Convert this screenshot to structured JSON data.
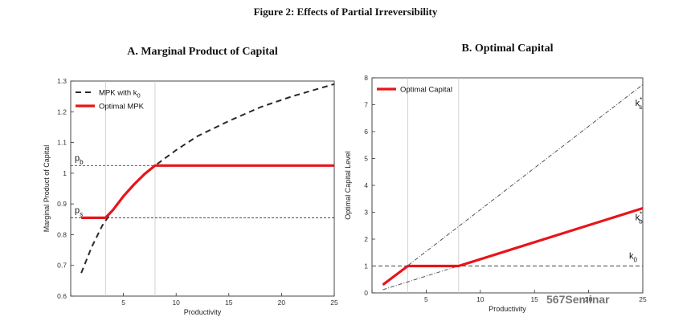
{
  "figure_title": "Figure 2: Effects of Partial Irreversibility",
  "watermark": "567Seminar",
  "colors": {
    "red": "#e8141a",
    "dark": "#2a2a2a",
    "grid": "#c8c8c8"
  },
  "chart_data": [
    {
      "type": "line",
      "title": "A. Marginal Product of Capital",
      "xlabel": "Productivity",
      "ylabel": "Marginal Product of Capital",
      "xlim": [
        0,
        25
      ],
      "ylim": [
        0.6,
        1.3
      ],
      "xticks": [
        0,
        5,
        10,
        15,
        20,
        25
      ],
      "yticks": [
        0.6,
        0.7,
        0.8,
        0.9,
        1.0,
        1.1,
        1.2,
        1.3
      ],
      "ytick_labels": [
        "0.6",
        "0.7",
        "0.8",
        "0.9",
        "1",
        "1.1",
        "1.2",
        "1.3"
      ],
      "vlines": [
        3.3,
        8
      ],
      "hlines": [
        {
          "y": 1.025,
          "label_main": "p",
          "label_sub": "b"
        },
        {
          "y": 0.855,
          "label_main": "p",
          "label_sub": "s"
        }
      ],
      "series": [
        {
          "name": "MPK with k0",
          "legend_main": "MPK with k",
          "legend_sub": "0",
          "style": "dashed",
          "x": [
            1,
            2,
            3,
            4,
            5,
            6,
            7,
            8,
            10,
            12,
            15,
            18,
            21,
            25
          ],
          "y": [
            0.675,
            0.76,
            0.83,
            0.88,
            0.925,
            0.963,
            0.997,
            1.025,
            1.075,
            1.12,
            1.17,
            1.215,
            1.25,
            1.29
          ]
        },
        {
          "name": "Optimal MPK",
          "legend_main": "Optimal MPK",
          "legend_sub": "",
          "style": "solid",
          "x": [
            1,
            3.3,
            4,
            5,
            6,
            7,
            8,
            25
          ],
          "y": [
            0.855,
            0.855,
            0.88,
            0.925,
            0.963,
            0.997,
            1.025,
            1.025
          ]
        }
      ]
    },
    {
      "type": "line",
      "title": "B. Optimal Capital",
      "xlabel": "Productivity",
      "ylabel": "Optimal Capital Level",
      "xlim": [
        0,
        25
      ],
      "ylim": [
        0,
        8
      ],
      "xticks": [
        0,
        5,
        10,
        15,
        20,
        25
      ],
      "yticks": [
        0,
        1,
        2,
        3,
        4,
        5,
        6,
        7,
        8
      ],
      "ytick_labels": [
        "0",
        "1",
        "2",
        "3",
        "4",
        "5",
        "6",
        "7",
        "8"
      ],
      "vlines": [
        3.3,
        8
      ],
      "hlines": [
        {
          "y": 1,
          "label_main": "k",
          "label_sub": "0"
        }
      ],
      "series": [
        {
          "name": "k*s",
          "label_main": "k",
          "label_sup": "*",
          "label_sub": "s",
          "label_x": 24.3,
          "label_y": 6.95,
          "style": "dashdot",
          "x": [
            1,
            25
          ],
          "y": [
            0.3,
            7.75
          ]
        },
        {
          "name": "k*b",
          "label_main": "k",
          "label_sup": "*",
          "label_sub": "b",
          "label_x": 24.3,
          "label_y": 2.7,
          "style": "dashdot",
          "x": [
            1,
            25
          ],
          "y": [
            0.12,
            3.15
          ]
        },
        {
          "name": "Optimal Capital",
          "legend_main": "Optimal Capital",
          "style": "solid",
          "x": [
            1,
            3.3,
            8,
            25
          ],
          "y": [
            0.3,
            1.0,
            1.0,
            3.15
          ]
        }
      ]
    }
  ]
}
